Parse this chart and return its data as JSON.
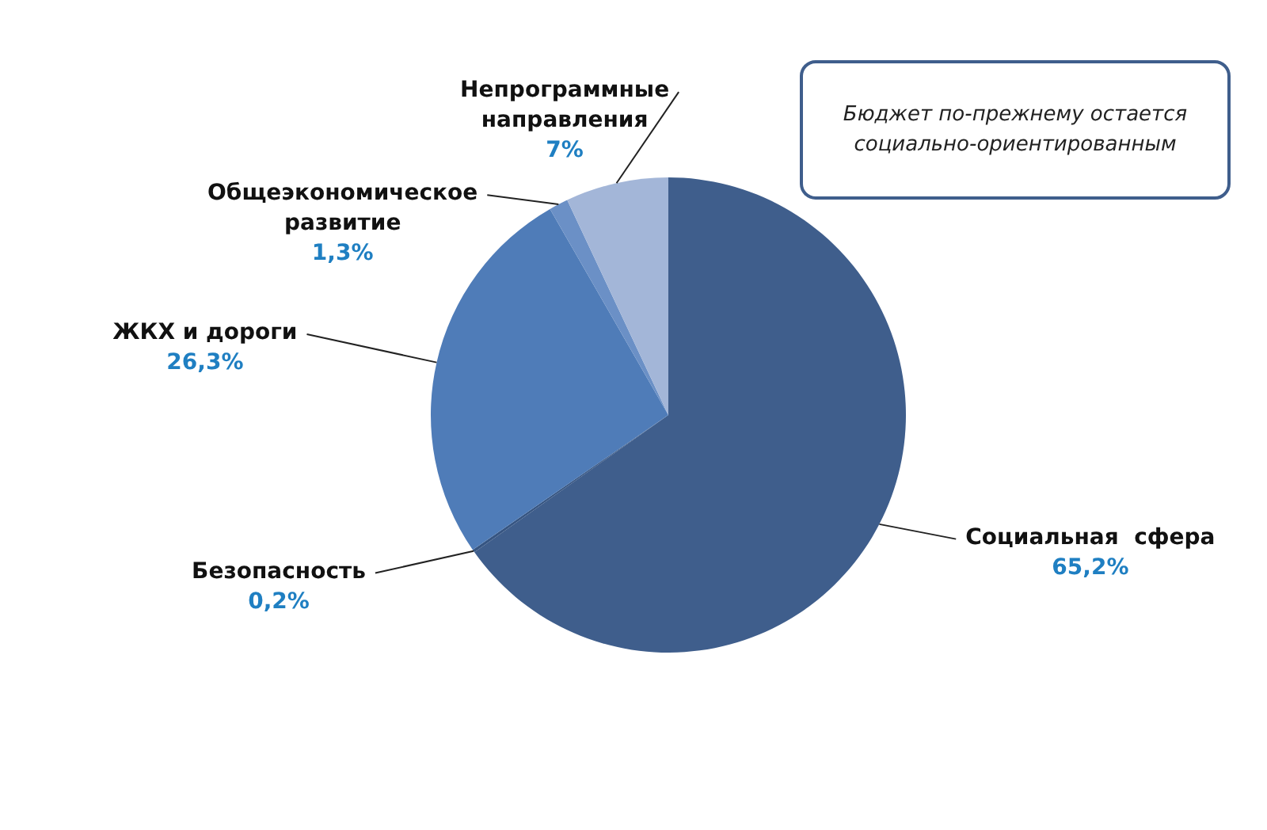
{
  "chart_data": {
    "type": "pie",
    "categories": [
      "Социальная  сфера",
      "Безопасность",
      "ЖКХ и дороги",
      "Общеэкономическое развитие",
      "Непрограммные направления"
    ],
    "values": [
      65.2,
      0.2,
      26.3,
      1.3,
      7
    ],
    "value_labels": [
      "65,2%",
      "0,2%",
      "26,3%",
      "1,3%",
      "7%"
    ],
    "colors": [
      "#3f5e8c",
      "#365582",
      "#4f7cb8",
      "#6b90c6",
      "#a3b6d8"
    ],
    "legend": false,
    "annotations": [
      "Бюджет по-прежнему остается социально-ориентированным"
    ]
  }
}
